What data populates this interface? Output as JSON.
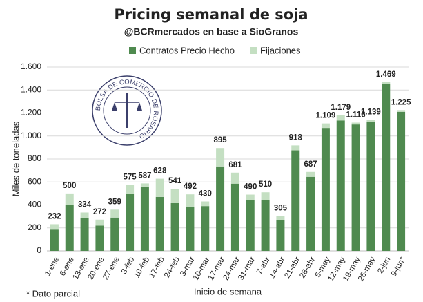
{
  "chart_data": {
    "type": "stacked_bar",
    "title": "Pricing semanal de soja",
    "subtitle": "@BCRmercados en base a SioGranos",
    "y_label": "Miles de toneladas",
    "x_label": "Inicio de semana",
    "note": "* Dato parcial",
    "logo_text": "BOLSA DE COMERCIO DE ROSARIO",
    "categories": [
      "1-ene",
      "6-ene",
      "13-ene",
      "20-ene",
      "27-ene",
      "3-feb",
      "10-feb",
      "17-feb",
      "24-feb",
      "3-mar",
      "10-mar",
      "17-mar",
      "24-mar",
      "31-mar",
      "7-abr",
      "14-abr",
      "21-abr",
      "28-abr",
      "5-may",
      "12-may",
      "19-may",
      "26-may",
      "2-jun",
      "9-jun*"
    ],
    "series": [
      {
        "name": "Contratos Precio Hecho",
        "color": "#4f8a4f",
        "values": [
          185,
          400,
          285,
          220,
          290,
          500,
          560,
          470,
          415,
          380,
          390,
          735,
          585,
          445,
          440,
          270,
          875,
          645,
          1070,
          1135,
          1100,
          1120,
          1450,
          1210
        ]
      },
      {
        "name": "Fijaciones",
        "color": "#c4dfc2",
        "values": [
          47,
          100,
          49,
          52,
          69,
          75,
          27,
          158,
          126,
          112,
          40,
          160,
          96,
          45,
          70,
          35,
          43,
          42,
          39,
          44,
          16,
          19,
          19,
          15
        ]
      }
    ],
    "totals": {
      "values": [
        232,
        500,
        334,
        272,
        359,
        575,
        587,
        628,
        541,
        492,
        430,
        895,
        681,
        490,
        510,
        305,
        918,
        687,
        1109,
        1179,
        1116,
        1139,
        1469,
        1225
      ],
      "value_labels": [
        "232",
        "500",
        "334",
        "272",
        "359",
        "575",
        "587",
        "628",
        "541",
        "492",
        "430",
        "895",
        "681",
        "490",
        "510",
        "305",
        "918",
        "687",
        "1.109",
        "1.179",
        "1.116",
        "1.139",
        "1.469",
        "1.225"
      ]
    },
    "ylim": [
      0,
      1600
    ],
    "yticks": [
      0,
      200,
      400,
      600,
      800,
      {
        "value": 1000,
        "label": "1.000"
      },
      {
        "value": 1200,
        "label": "1.200"
      },
      {
        "value": 1400,
        "label": "1.400"
      },
      {
        "value": 1600,
        "label": "1.600"
      }
    ],
    "grid": true,
    "legend": "top"
  }
}
